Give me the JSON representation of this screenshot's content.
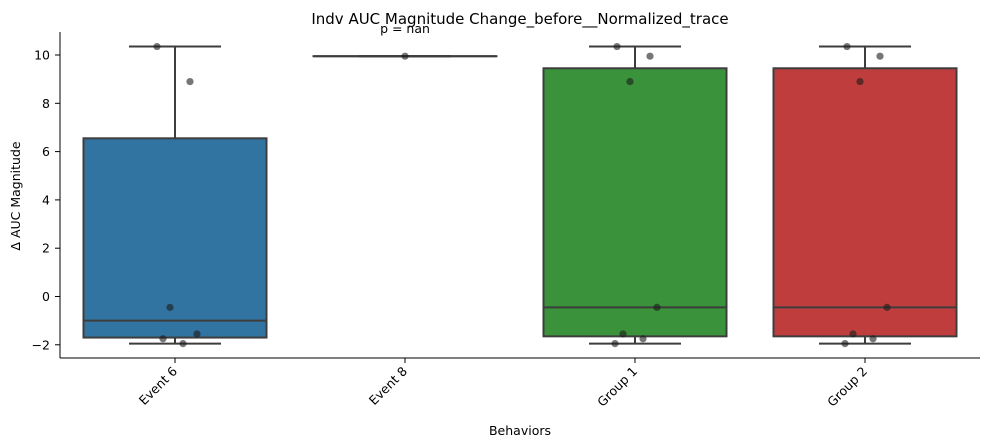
{
  "chart_data": {
    "type": "box",
    "title": "Indv AUC Magnitude Change_before__Normalized_trace",
    "xlabel": "Behaviors",
    "ylabel": "Δ AUC Magnitude",
    "ylim": [
      -2.5,
      10.9
    ],
    "yticks": [
      -2,
      0,
      2,
      4,
      6,
      8,
      10
    ],
    "grid": false,
    "annotation": "p = nan",
    "categories": [
      "Event 6",
      "Event 8",
      "Group 1",
      "Group 2"
    ],
    "colors": [
      "#3274a1",
      "#ffffff",
      "#3a923a",
      "#c03d3e"
    ],
    "boxes": [
      {
        "category": "Event 6",
        "whisker_low": -1.95,
        "q1": -1.7,
        "median": -1.0,
        "q3": 6.55,
        "whisker_high": 10.35
      },
      {
        "category": "Event 8",
        "whisker_low": 9.95,
        "q1": 9.95,
        "median": 9.95,
        "q3": 9.95,
        "whisker_high": 9.95
      },
      {
        "category": "Group 1",
        "whisker_low": -1.95,
        "q1": -1.65,
        "median": -0.45,
        "q3": 9.45,
        "whisker_high": 10.35
      },
      {
        "category": "Group 2",
        "whisker_low": -1.95,
        "q1": -1.65,
        "median": -0.45,
        "q3": 9.45,
        "whisker_high": 10.35
      }
    ],
    "points": [
      {
        "category": "Event 6",
        "values": [
          10.35,
          8.9,
          -0.45,
          -1.55,
          -1.75,
          -1.95
        ]
      },
      {
        "category": "Event 8",
        "values": [
          9.95
        ]
      },
      {
        "category": "Group 1",
        "values": [
          10.35,
          9.95,
          8.9,
          -0.45,
          -1.55,
          -1.75,
          -1.95
        ]
      },
      {
        "category": "Group 2",
        "values": [
          10.35,
          9.95,
          8.9,
          -0.45,
          -1.55,
          -1.75,
          -1.95
        ]
      }
    ]
  }
}
